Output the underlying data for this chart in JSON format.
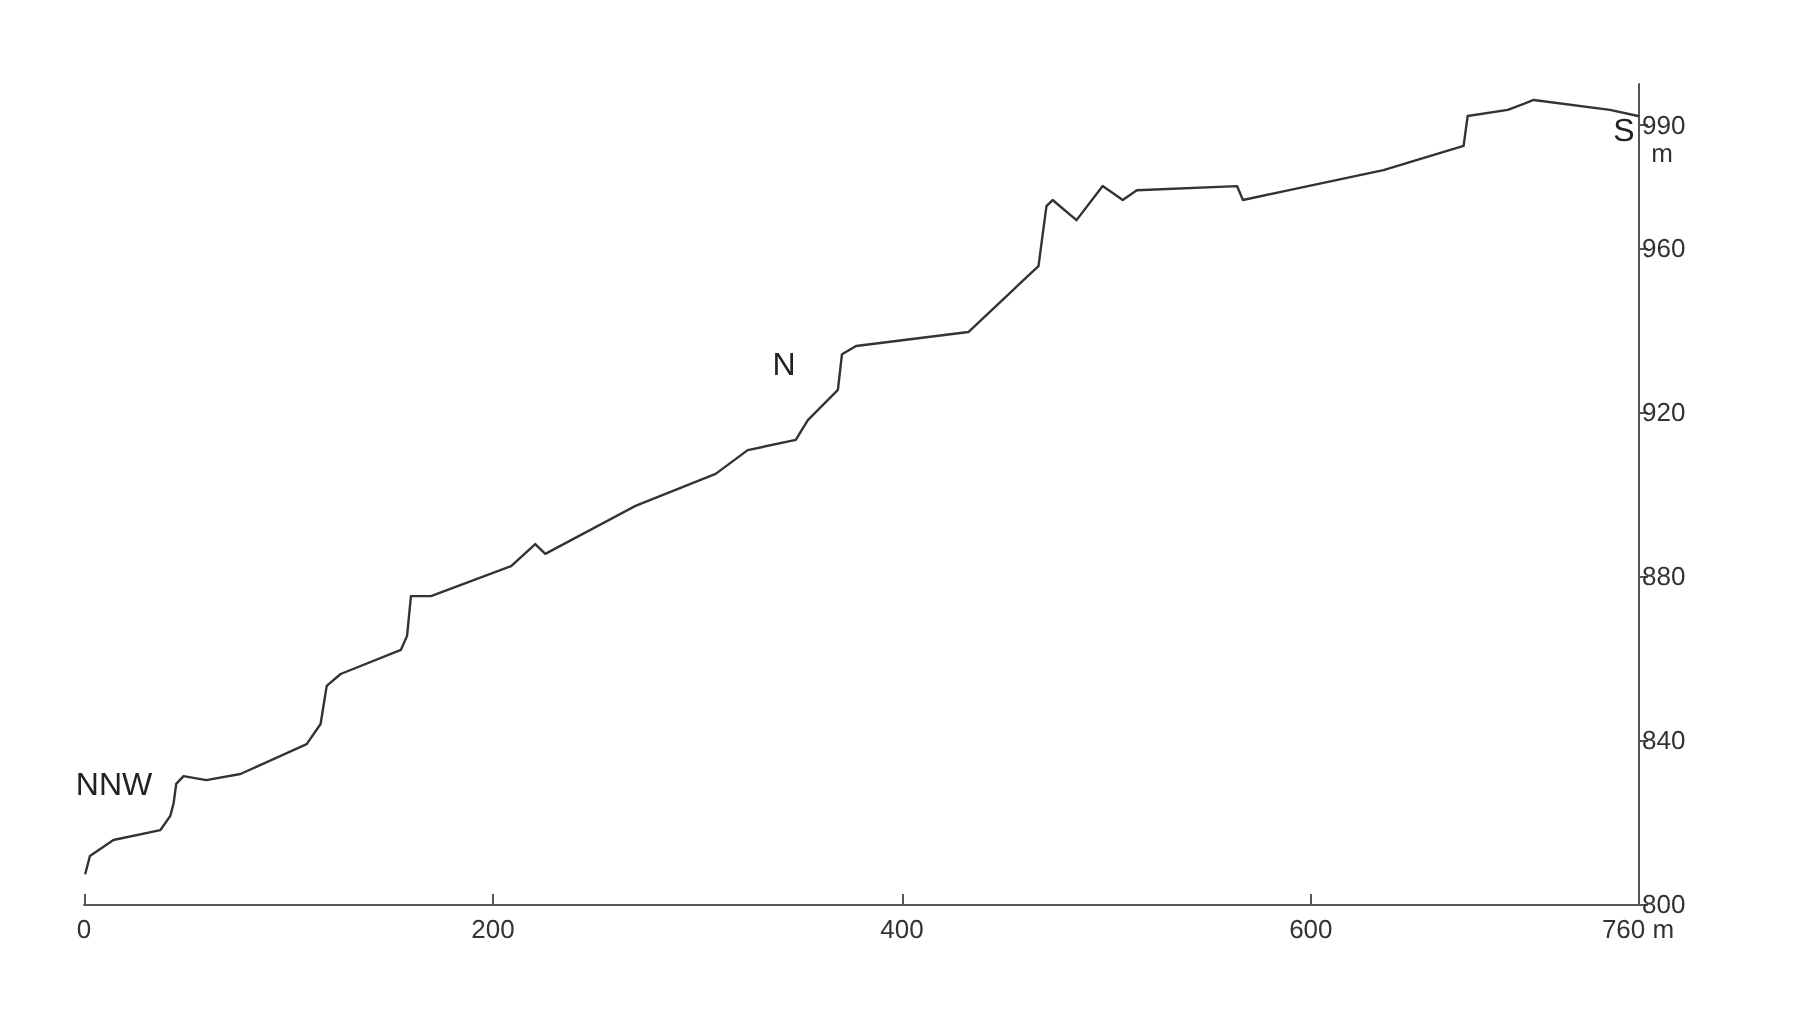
{
  "chart_data": {
    "type": "line",
    "ylabel": "m",
    "x": [
      0.7,
      2.9,
      14.4,
      37.3,
      42.2,
      43.8,
      45.1,
      48.7,
      59.8,
      76.5,
      108.9,
      115.7,
      118.7,
      125.5,
      155,
      158,
      159.9,
      169.7,
      208.9,
      220.7,
      225.6,
      269.7,
      308.9,
      324.6,
      348.1,
      354,
      368.7,
      370.7,
      377.6,
      432.5,
      466.8,
      470.7,
      473.7,
      485.4,
      498.2,
      508,
      514.9,
      563.9,
      566.8,
      589.4,
      635.5,
      674.7,
      676.7,
      696.3,
      709,
      746.3,
      760
    ],
    "series": [
      {
        "color": "#333333",
        "values": [
          807.5,
          811.7,
          815.6,
          818,
          821.5,
          824.5,
          829.3,
          831.2,
          830.2,
          831.7,
          839,
          843.9,
          853.2,
          856.1,
          862,
          865.4,
          875.1,
          875.1,
          882.4,
          887.8,
          885.4,
          897.1,
          904.9,
          910.7,
          913.2,
          918,
          925.4,
          934.1,
          936.1,
          939.5,
          955.6,
          970.2,
          971.7,
          966.8,
          975.1,
          971.7,
          974.1,
          975.1,
          971.7,
          974.1,
          979,
          984.9,
          992.2,
          993.7,
          996.1,
          993.7,
          992.2
        ]
      }
    ],
    "xlim": [
      0,
      760
    ],
    "xticks": [
      0,
      200,
      400,
      600,
      {
        "value": 760,
        "label": "760 m"
      }
    ],
    "ylim": [
      800,
      1000
    ],
    "yticks": [
      800,
      840,
      880,
      920,
      960,
      990
    ],
    "annotations": [
      "NNW",
      "N",
      "S"
    ],
    "grid": false,
    "marker": "none",
    "line_style": "solid"
  }
}
